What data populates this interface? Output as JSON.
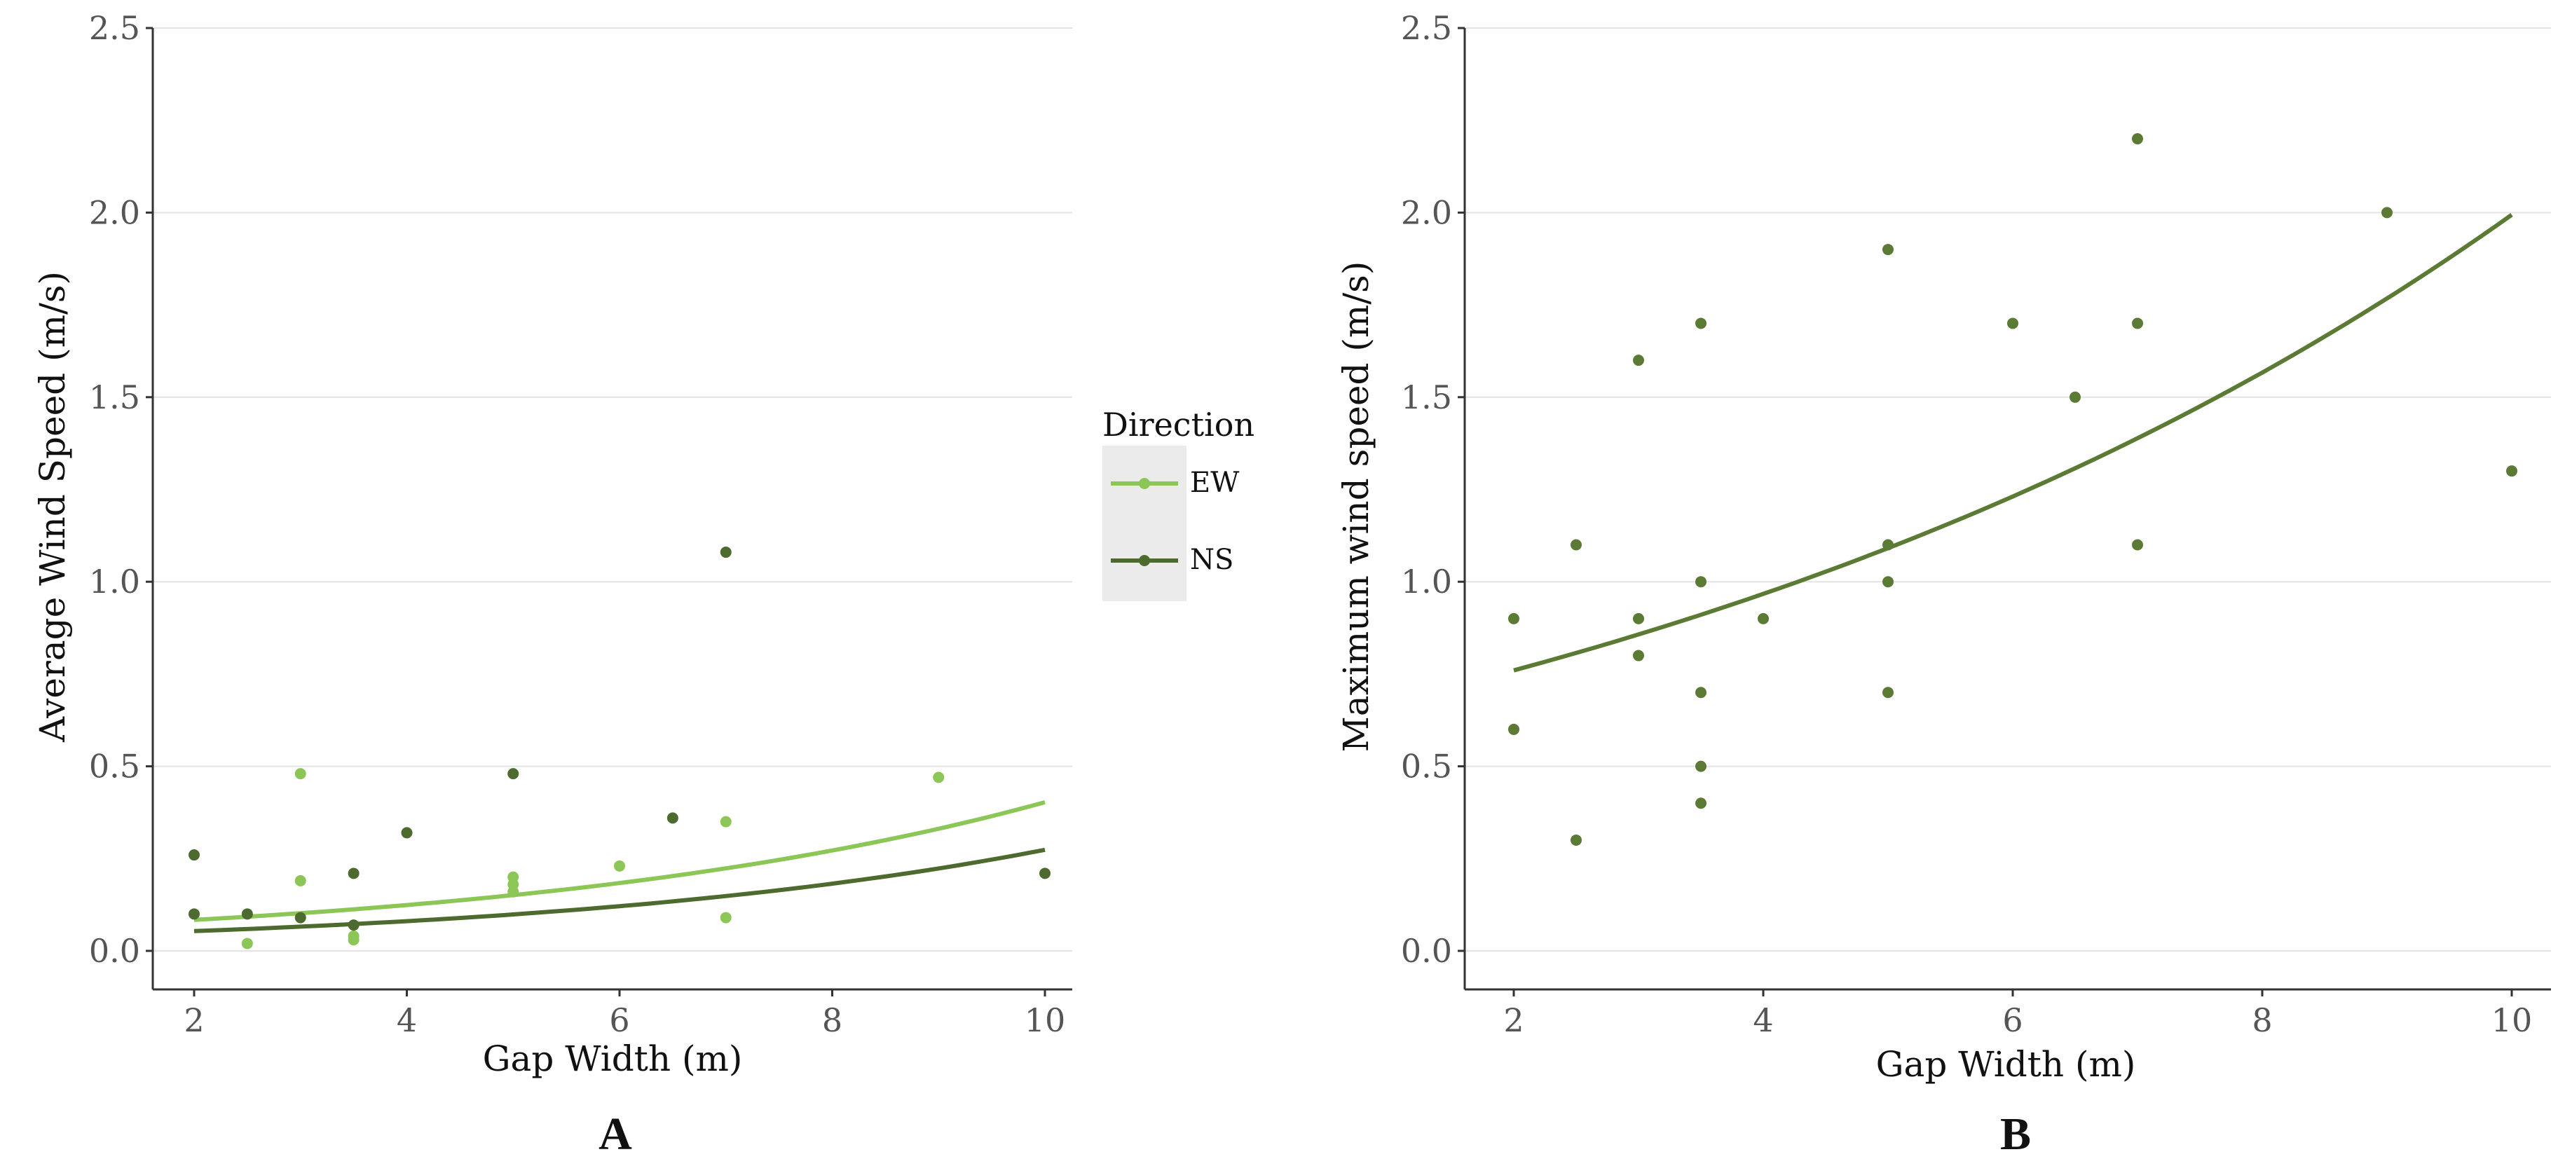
{
  "chart_data": [
    {
      "type": "scatter",
      "panel_label": "A",
      "xlabel": "Gap Width (m)",
      "ylabel": "Average Wind Speed (m/s)",
      "xlim": [
        1.6,
        10.3
      ],
      "ylim": [
        -0.12,
        2.6
      ],
      "xticks": [
        2,
        4,
        6,
        8,
        10
      ],
      "xtick_labels": [
        "2",
        "4",
        "6",
        "8",
        "10"
      ],
      "yticks": [
        0.0,
        0.5,
        1.0,
        1.5,
        2.0,
        2.5
      ],
      "ytick_labels": [
        "0.0",
        "0.5",
        "1.0",
        "1.5",
        "2.0",
        "2.5"
      ],
      "grid": true,
      "legend": {
        "title": "Direction",
        "position": "right",
        "entries": [
          "EW",
          "NS"
        ]
      },
      "series": [
        {
          "name": "EW",
          "color": "#8cc657",
          "points": [
            [
              2.5,
              0.02
            ],
            [
              3.0,
              0.48
            ],
            [
              3.0,
              0.19
            ],
            [
              3.5,
              0.04
            ],
            [
              3.5,
              0.03
            ],
            [
              5.0,
              0.2
            ],
            [
              5.0,
              0.18
            ],
            [
              5.0,
              0.16
            ],
            [
              6.0,
              0.23
            ],
            [
              7.0,
              0.35
            ],
            [
              7.0,
              0.09
            ],
            [
              9.0,
              0.47
            ]
          ],
          "trend": {
            "model": "exponential",
            "a": 0.0567,
            "b": 0.196,
            "x_range": [
              2,
              10
            ]
          }
        },
        {
          "name": "NS",
          "color": "#4d6b2e",
          "points": [
            [
              2.0,
              0.26
            ],
            [
              2.0,
              0.1
            ],
            [
              2.5,
              0.1
            ],
            [
              3.0,
              0.09
            ],
            [
              3.5,
              0.21
            ],
            [
              3.5,
              0.07
            ],
            [
              4.0,
              0.32
            ],
            [
              5.0,
              0.48
            ],
            [
              6.5,
              0.36
            ],
            [
              7.0,
              1.08
            ],
            [
              10.0,
              0.21
            ]
          ],
          "trend": {
            "model": "exponential",
            "a": 0.0356,
            "b": 0.204,
            "x_range": [
              2,
              10
            ]
          }
        }
      ]
    },
    {
      "type": "scatter",
      "panel_label": "B",
      "xlabel": "Gap Width (m)",
      "ylabel": "Maximum wind speed (m/s)",
      "xlim": [
        1.6,
        10.3
      ],
      "ylim": [
        -0.12,
        2.6
      ],
      "xticks": [
        2,
        4,
        6,
        8,
        10
      ],
      "xtick_labels": [
        "2",
        "4",
        "6",
        "8",
        "10"
      ],
      "yticks": [
        0.0,
        0.5,
        1.0,
        1.5,
        2.0,
        2.5
      ],
      "ytick_labels": [
        "0.0",
        "0.5",
        "1.0",
        "1.5",
        "2.0",
        "2.5"
      ],
      "grid": true,
      "series": [
        {
          "name": "Maximum",
          "color": "#5b7a33",
          "points": [
            [
              2.0,
              0.9
            ],
            [
              2.0,
              0.6
            ],
            [
              2.5,
              1.1
            ],
            [
              2.5,
              0.3
            ],
            [
              3.0,
              1.6
            ],
            [
              3.0,
              0.9
            ],
            [
              3.0,
              0.8
            ],
            [
              3.5,
              1.7
            ],
            [
              3.5,
              1.0
            ],
            [
              3.5,
              0.7
            ],
            [
              3.5,
              0.5
            ],
            [
              3.5,
              0.4
            ],
            [
              4.0,
              0.9
            ],
            [
              5.0,
              1.9
            ],
            [
              5.0,
              1.1
            ],
            [
              5.0,
              1.0
            ],
            [
              5.0,
              0.7
            ],
            [
              6.0,
              1.7
            ],
            [
              6.5,
              1.5
            ],
            [
              7.0,
              2.2
            ],
            [
              7.0,
              1.7
            ],
            [
              7.0,
              1.1
            ],
            [
              9.0,
              2.0
            ],
            [
              10.0,
              1.3
            ]
          ],
          "trend": {
            "model": "exponential",
            "a": 0.597,
            "b": 0.1206,
            "x_range": [
              2,
              10
            ]
          }
        }
      ]
    }
  ]
}
